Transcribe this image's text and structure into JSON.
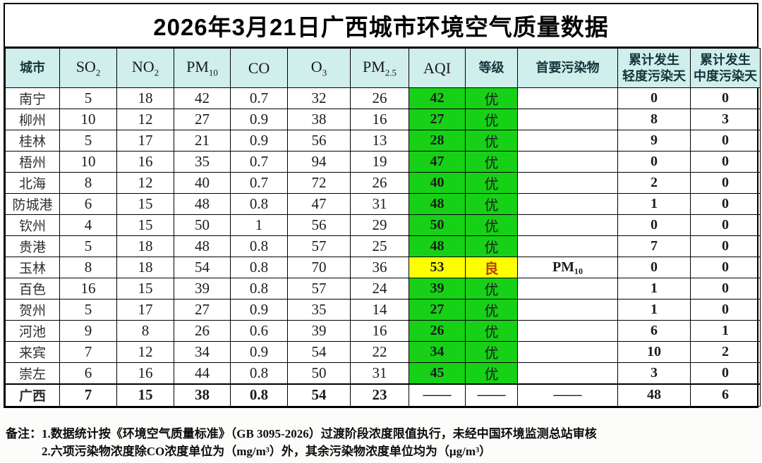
{
  "title": "2026年3月21日广西城市环境空气质量数据",
  "header": {
    "cols": [
      {
        "base": "城市",
        "sub": "",
        "line2": "",
        "latin": false
      },
      {
        "base": "SO",
        "sub": "2",
        "line2": "",
        "latin": true
      },
      {
        "base": "NO",
        "sub": "2",
        "line2": "",
        "latin": true
      },
      {
        "base": "PM",
        "sub": "10",
        "line2": "",
        "latin": true
      },
      {
        "base": "CO",
        "sub": "",
        "line2": "",
        "latin": true
      },
      {
        "base": "O",
        "sub": "3",
        "line2": "",
        "latin": true
      },
      {
        "base": "PM",
        "sub": "2.5",
        "line2": "",
        "latin": true
      },
      {
        "base": "AQI",
        "sub": "",
        "line2": "",
        "latin": true
      },
      {
        "base": "等级",
        "sub": "",
        "line2": "",
        "latin": false
      },
      {
        "base": "首要污染物",
        "sub": "",
        "line2": "",
        "latin": false
      },
      {
        "base": "累计发生",
        "sub": "",
        "line2": "轻度污染天",
        "latin": false
      },
      {
        "base": "累计发生",
        "sub": "",
        "line2": "中度污染天",
        "latin": false
      }
    ]
  },
  "rows": [
    {
      "city": "南宁",
      "so2": "5",
      "no2": "18",
      "pm10": "42",
      "co": "0.7",
      "o3": "32",
      "pm25": "26",
      "aqi": "42",
      "grade": "优",
      "pollutant": "",
      "light": "0",
      "moderate": "0",
      "highlight": "green",
      "summary": false
    },
    {
      "city": "柳州",
      "so2": "10",
      "no2": "12",
      "pm10": "27",
      "co": "0.9",
      "o3": "38",
      "pm25": "16",
      "aqi": "27",
      "grade": "优",
      "pollutant": "",
      "light": "8",
      "moderate": "3",
      "highlight": "green",
      "summary": false
    },
    {
      "city": "桂林",
      "so2": "5",
      "no2": "17",
      "pm10": "21",
      "co": "0.9",
      "o3": "56",
      "pm25": "13",
      "aqi": "28",
      "grade": "优",
      "pollutant": "",
      "light": "9",
      "moderate": "0",
      "highlight": "green",
      "summary": false
    },
    {
      "city": "梧州",
      "so2": "10",
      "no2": "16",
      "pm10": "35",
      "co": "0.7",
      "o3": "94",
      "pm25": "19",
      "aqi": "47",
      "grade": "优",
      "pollutant": "",
      "light": "0",
      "moderate": "0",
      "highlight": "green",
      "summary": false
    },
    {
      "city": "北海",
      "so2": "8",
      "no2": "12",
      "pm10": "40",
      "co": "0.7",
      "o3": "72",
      "pm25": "26",
      "aqi": "40",
      "grade": "优",
      "pollutant": "",
      "light": "2",
      "moderate": "0",
      "highlight": "green",
      "summary": false
    },
    {
      "city": "防城港",
      "so2": "6",
      "no2": "15",
      "pm10": "48",
      "co": "0.8",
      "o3": "47",
      "pm25": "31",
      "aqi": "48",
      "grade": "优",
      "pollutant": "",
      "light": "1",
      "moderate": "0",
      "highlight": "green",
      "summary": false
    },
    {
      "city": "钦州",
      "so2": "4",
      "no2": "15",
      "pm10": "50",
      "co": "1",
      "o3": "56",
      "pm25": "29",
      "aqi": "50",
      "grade": "优",
      "pollutant": "",
      "light": "0",
      "moderate": "0",
      "highlight": "green",
      "summary": false
    },
    {
      "city": "贵港",
      "so2": "5",
      "no2": "18",
      "pm10": "48",
      "co": "0.8",
      "o3": "57",
      "pm25": "25",
      "aqi": "48",
      "grade": "优",
      "pollutant": "",
      "light": "7",
      "moderate": "0",
      "highlight": "green",
      "summary": false
    },
    {
      "city": "玉林",
      "so2": "8",
      "no2": "18",
      "pm10": "54",
      "co": "0.8",
      "o3": "70",
      "pm25": "36",
      "aqi": "53",
      "grade": "良",
      "pollutant": "PM₁₀",
      "light": "0",
      "moderate": "0",
      "highlight": "yellow",
      "summary": false
    },
    {
      "city": "百色",
      "so2": "16",
      "no2": "15",
      "pm10": "39",
      "co": "0.8",
      "o3": "57",
      "pm25": "24",
      "aqi": "39",
      "grade": "优",
      "pollutant": "",
      "light": "1",
      "moderate": "0",
      "highlight": "green",
      "summary": false
    },
    {
      "city": "贺州",
      "so2": "5",
      "no2": "17",
      "pm10": "27",
      "co": "0.9",
      "o3": "35",
      "pm25": "14",
      "aqi": "27",
      "grade": "优",
      "pollutant": "",
      "light": "1",
      "moderate": "0",
      "highlight": "green",
      "summary": false
    },
    {
      "city": "河池",
      "so2": "9",
      "no2": "8",
      "pm10": "26",
      "co": "0.6",
      "o3": "39",
      "pm25": "16",
      "aqi": "26",
      "grade": "优",
      "pollutant": "",
      "light": "6",
      "moderate": "1",
      "highlight": "green",
      "summary": false
    },
    {
      "city": "来宾",
      "so2": "7",
      "no2": "12",
      "pm10": "34",
      "co": "0.9",
      "o3": "54",
      "pm25": "22",
      "aqi": "34",
      "grade": "优",
      "pollutant": "",
      "light": "10",
      "moderate": "2",
      "highlight": "green",
      "summary": false
    },
    {
      "city": "崇左",
      "so2": "6",
      "no2": "16",
      "pm10": "44",
      "co": "0.8",
      "o3": "50",
      "pm25": "31",
      "aqi": "45",
      "grade": "优",
      "pollutant": "",
      "light": "3",
      "moderate": "0",
      "highlight": "green",
      "summary": false
    },
    {
      "city": "广西",
      "so2": "7",
      "no2": "15",
      "pm10": "38",
      "co": "0.8",
      "o3": "54",
      "pm25": "23",
      "aqi": "——",
      "grade": "——",
      "pollutant": "——",
      "light": "48",
      "moderate": "6",
      "highlight": "none",
      "summary": true
    }
  ],
  "notes": {
    "label": "备注：",
    "items": [
      "1.数据统计按《环境空气质量标准》（GB 3095-2026）过渡阶段浓度限值执行，未经中国环境监测总站审核",
      "2.六项污染物浓度除CO浓度单位为（mg/m³）外，其余污染物浓度单位均为（µg/m³）"
    ]
  },
  "colors": {
    "header_bg": "#cfeeec",
    "aqi_green": "#17d117",
    "aqi_yellow": "#ffff00",
    "grade_good_text": "#b5420e",
    "border": "#000000"
  }
}
